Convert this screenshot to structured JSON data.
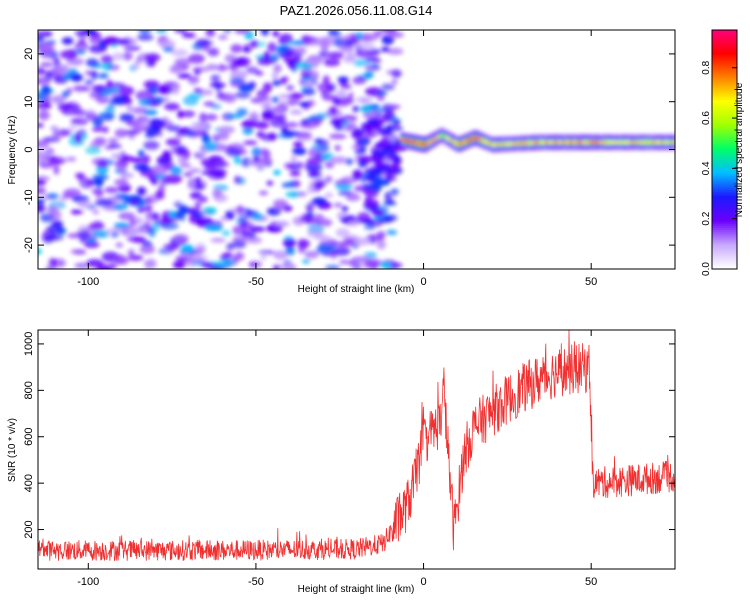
{
  "title": "PAZ1.2026.056.11.08.G14",
  "chart_data": [
    {
      "type": "heatmap",
      "xlabel": "Height of straight line (km)",
      "ylabel": "Frequency (Hz)",
      "xlim": [
        -115,
        75
      ],
      "ylim": [
        -25,
        25
      ],
      "xticks": [
        -100,
        -50,
        0,
        50
      ],
      "yticks": [
        -20,
        -10,
        0,
        10,
        20
      ],
      "colorbar": {
        "label": "Normalized spectral amplitude",
        "range": [
          0.0,
          0.95
        ],
        "ticks": [
          0.0,
          0.2,
          0.4,
          0.6,
          0.8
        ],
        "tick_labels": [
          "0.0",
          "0.2",
          "0.4",
          "0.6",
          "0.8"
        ],
        "colormap": [
          "#ffffff",
          "#c8a8ff",
          "#6a00ff",
          "#1a1aff",
          "#00bfff",
          "#00ff66",
          "#a0ff00",
          "#ffff00",
          "#ff8000",
          "#ff0000",
          "#ff0080"
        ]
      },
      "noise_region_x": [
        -115,
        -10
      ],
      "carrier_ridge": [
        {
          "x": -7,
          "freq": 2,
          "amp": 0.85
        },
        {
          "x": 0,
          "freq": 1,
          "amp": 0.9
        },
        {
          "x": 5,
          "freq": 3,
          "amp": 0.6
        },
        {
          "x": 10,
          "freq": 1,
          "amp": 0.8
        },
        {
          "x": 15,
          "freq": 2.5,
          "amp": 0.85
        },
        {
          "x": 20,
          "freq": 1,
          "amp": 0.7
        },
        {
          "x": 35,
          "freq": 1.5,
          "amp": 0.75
        },
        {
          "x": 50,
          "freq": 1.5,
          "amp": 0.75
        },
        {
          "x": 75,
          "freq": 1.5,
          "amp": 0.7
        }
      ]
    },
    {
      "type": "line",
      "xlabel": "Height of straight line (km)",
      "ylabel": "SNR (10 * v/v)",
      "xlim": [
        -115,
        75
      ],
      "ylim": [
        30,
        1060
      ],
      "xticks": [
        -100,
        -50,
        0,
        50
      ],
      "yticks": [
        200,
        400,
        600,
        800,
        1000
      ],
      "color": "#f03030",
      "series_trend": [
        {
          "x": -115,
          "y": 110
        },
        {
          "x": -60,
          "y": 110
        },
        {
          "x": -20,
          "y": 115
        },
        {
          "x": -12,
          "y": 140
        },
        {
          "x": -5,
          "y": 300
        },
        {
          "x": -3,
          "y": 390
        },
        {
          "x": 0,
          "y": 580
        },
        {
          "x": 5,
          "y": 660
        },
        {
          "x": 6,
          "y": 820
        },
        {
          "x": 7,
          "y": 600
        },
        {
          "x": 9,
          "y": 200
        },
        {
          "x": 10,
          "y": 300
        },
        {
          "x": 12,
          "y": 520
        },
        {
          "x": 15,
          "y": 640
        },
        {
          "x": 20,
          "y": 700
        },
        {
          "x": 25,
          "y": 760
        },
        {
          "x": 30,
          "y": 810
        },
        {
          "x": 35,
          "y": 850
        },
        {
          "x": 40,
          "y": 880
        },
        {
          "x": 45,
          "y": 890
        },
        {
          "x": 49.5,
          "y": 900
        },
        {
          "x": 50.5,
          "y": 400
        },
        {
          "x": 60,
          "y": 410
        },
        {
          "x": 75,
          "y": 430
        }
      ]
    }
  ]
}
